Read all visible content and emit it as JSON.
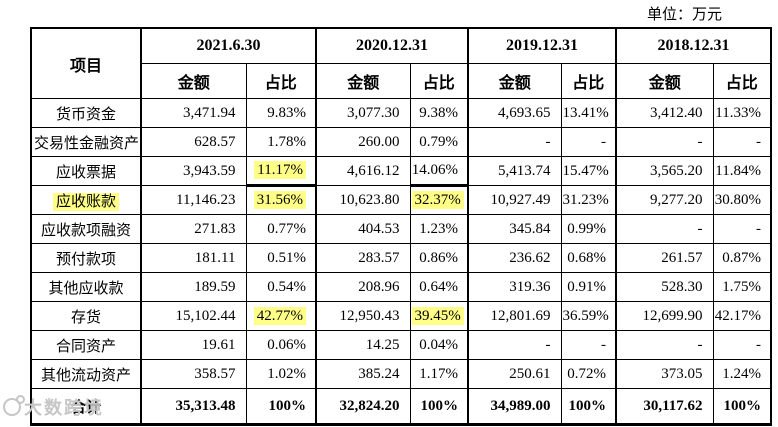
{
  "unit_label": "单位：万元",
  "watermark": {
    "text": "大数跨境"
  },
  "colors": {
    "highlight": "#ffff88",
    "border": "#000000",
    "watermark": "#c6c6c6",
    "background": "#ffffff"
  },
  "table": {
    "item_header": "项目",
    "periods": [
      "2021.6.30",
      "2020.12.31",
      "2019.12.31",
      "2018.12.31"
    ],
    "amount_label": "金额",
    "ratio_label": "占比",
    "rows": [
      {
        "label": "货币资金",
        "cells": [
          "3,471.94",
          "9.83%",
          "3,077.30",
          "9.38%",
          "4,693.65",
          "13.41%",
          "3,412.40",
          "11.33%"
        ]
      },
      {
        "label": "交易性金融资产",
        "cells": [
          "628.57",
          "1.78%",
          "260.00",
          "0.79%",
          "-",
          "-",
          "-",
          "-"
        ]
      },
      {
        "label": "应收票据",
        "cells": [
          "3,943.59",
          "11.17%",
          "4,616.12",
          "14.06%",
          "5,413.74",
          "15.47%",
          "3,565.20",
          "11.84%"
        ],
        "hl_cells": [
          1
        ],
        "thick_bottom_cells": [
          1,
          3
        ]
      },
      {
        "label": "应收账款",
        "label_hl": true,
        "cells": [
          "11,146.23",
          "31.56%",
          "10,623.80",
          "32.37%",
          "10,927.49",
          "31.23%",
          "9,277.20",
          "30.80%"
        ],
        "hl_cells": [
          1,
          3
        ]
      },
      {
        "label": "应收款项融资",
        "cells": [
          "271.83",
          "0.77%",
          "404.53",
          "1.23%",
          "345.84",
          "0.99%",
          "-",
          "-"
        ]
      },
      {
        "label": "预付款项",
        "cells": [
          "181.11",
          "0.51%",
          "283.57",
          "0.86%",
          "236.62",
          "0.68%",
          "261.57",
          "0.87%"
        ]
      },
      {
        "label": "其他应收款",
        "cells": [
          "189.59",
          "0.54%",
          "208.96",
          "0.64%",
          "319.36",
          "0.91%",
          "528.30",
          "1.75%"
        ]
      },
      {
        "label": "存货",
        "cells": [
          "15,102.44",
          "42.77%",
          "12,950.43",
          "39.45%",
          "12,801.69",
          "36.59%",
          "12,699.90",
          "42.17%"
        ],
        "hl_cells": [
          1,
          3
        ]
      },
      {
        "label": "合同资产",
        "cells": [
          "19.61",
          "0.06%",
          "14.25",
          "0.04%",
          "-",
          "-",
          "-",
          "-"
        ]
      },
      {
        "label": "其他流动资产",
        "cells": [
          "358.57",
          "1.02%",
          "385.24",
          "1.17%",
          "250.61",
          "0.72%",
          "373.05",
          "1.24%"
        ]
      },
      {
        "label": "合计",
        "total": true,
        "cells": [
          "35,313.48",
          "100%",
          "32,824.20",
          "100%",
          "34,989.00",
          "100%",
          "30,117.62",
          "100%"
        ]
      }
    ]
  }
}
